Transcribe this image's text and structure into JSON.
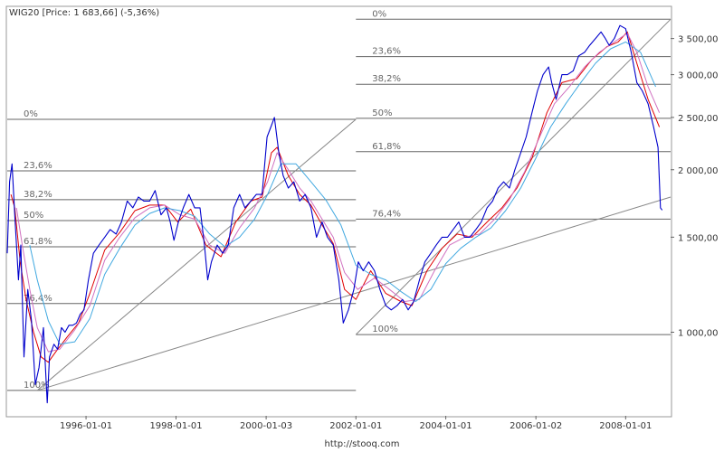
{
  "chart_data": {
    "type": "line",
    "title": "WIG20 [Price: 1 683,66] (-5,36%)",
    "source": "http://stooq.com",
    "y_scale": "log",
    "ylim": [
      700,
      4000
    ],
    "xlim": [
      "1994-04-01",
      "2008-12-31"
    ],
    "grid": false,
    "x_tick_labels": [
      "1996-01-01",
      "1998-01-01",
      "2000-01-03",
      "2002-01-01",
      "2004-01-01",
      "2006-01-02",
      "2008-01-01"
    ],
    "x_tick_dates": [
      "1996-01-01",
      "1998-01-01",
      "2000-01-03",
      "2002-01-01",
      "2004-01-01",
      "2006-01-02",
      "2008-01-01"
    ],
    "y_ticks": [
      {
        "label": "3 500,00",
        "value": 3500
      },
      {
        "label": "3 000,00",
        "value": 3000
      },
      {
        "label": "2 500,00",
        "value": 2500
      },
      {
        "label": "2 000,00",
        "value": 2000
      },
      {
        "label": "1 500,00",
        "value": 1500
      },
      {
        "label": "1 000,00",
        "value": 1000
      }
    ],
    "colors": {
      "price": "#0000cc",
      "ma_short": "#e00000",
      "ma_mid": "#d070c0",
      "ma_long": "#40a8e0",
      "fib_lines": "#666666",
      "trend_lines": "#888888",
      "border": "#999999"
    },
    "series": [
      {
        "color_key": "price",
        "x": [
          "1994-04-01",
          "1994-04-20",
          "1994-05-10",
          "1994-06-01",
          "1994-07-01",
          "1994-07-20",
          "1994-08-15",
          "1994-09-15",
          "1994-10-15",
          "1994-11-15",
          "1994-12-15",
          "1995-01-20",
          "1995-02-20",
          "1995-03-10",
          "1995-04-15",
          "1995-05-15",
          "1995-06-15",
          "1995-07-15",
          "1995-08-15",
          "1995-09-15",
          "1995-10-15",
          "1995-11-15",
          "1995-12-15",
          "1996-01-20",
          "1996-03-01",
          "1996-04-15",
          "1996-06-01",
          "1996-07-15",
          "1996-09-01",
          "1996-10-15",
          "1996-12-01",
          "1997-01-15",
          "1997-03-01",
          "1997-04-15",
          "1997-06-01",
          "1997-07-15",
          "1997-09-01",
          "1997-10-15",
          "1997-11-15",
          "1997-12-15",
          "1998-01-20",
          "1998-03-01",
          "1998-04-15",
          "1998-06-01",
          "1998-07-15",
          "1998-08-20",
          "1998-09-15",
          "1998-10-15",
          "1998-12-01",
          "1999-01-15",
          "1999-03-01",
          "1999-04-15",
          "1999-06-01",
          "1999-07-15",
          "1999-09-01",
          "1999-10-15",
          "1999-12-01",
          "2000-01-10",
          "2000-02-10",
          "2000-03-10",
          "2000-04-15",
          "2000-05-20",
          "2000-07-01",
          "2000-08-15",
          "2000-10-01",
          "2000-11-15",
          "2001-01-01",
          "2001-02-15",
          "2001-04-01",
          "2001-05-15",
          "2001-07-01",
          "2001-08-15",
          "2001-09-20",
          "2001-11-01",
          "2001-12-15",
          "2002-01-20",
          "2002-03-01",
          "2002-04-15",
          "2002-06-01",
          "2002-07-15",
          "2002-09-01",
          "2002-10-15",
          "2002-12-01",
          "2003-01-15",
          "2003-03-01",
          "2003-04-15",
          "2003-06-01",
          "2003-07-15",
          "2003-09-01",
          "2003-10-15",
          "2003-12-01",
          "2004-01-15",
          "2004-03-01",
          "2004-04-15",
          "2004-06-01",
          "2004-07-15",
          "2004-09-01",
          "2004-10-15",
          "2004-12-01",
          "2005-01-15",
          "2005-03-01",
          "2005-04-15",
          "2005-06-01",
          "2005-07-15",
          "2005-09-01",
          "2005-10-15",
          "2005-12-01",
          "2006-01-15",
          "2006-03-01",
          "2006-04-15",
          "2006-05-10",
          "2006-06-15",
          "2006-08-01",
          "2006-09-15",
          "2006-11-01",
          "2006-12-15",
          "2007-02-01",
          "2007-03-15",
          "2007-05-01",
          "2007-06-15",
          "2007-07-20",
          "2007-08-20",
          "2007-10-01",
          "2007-11-15",
          "2008-01-01",
          "2008-02-15",
          "2008-04-01",
          "2008-05-15",
          "2008-07-01",
          "2008-08-15",
          "2008-09-20",
          "2008-10-10",
          "2008-10-24"
        ],
        "y": [
          1400,
          1900,
          2050,
          1650,
          1250,
          1450,
          900,
          1200,
          1050,
          800,
          860,
          1020,
          740,
          900,
          950,
          930,
          1020,
          1000,
          1030,
          1030,
          1040,
          1080,
          1100,
          1250,
          1400,
          1450,
          1500,
          1550,
          1520,
          1600,
          1750,
          1700,
          1780,
          1750,
          1750,
          1830,
          1650,
          1700,
          1600,
          1480,
          1600,
          1700,
          1800,
          1700,
          1700,
          1450,
          1250,
          1350,
          1450,
          1400,
          1450,
          1700,
          1800,
          1700,
          1750,
          1800,
          1800,
          2300,
          2400,
          2500,
          2150,
          1950,
          1850,
          1900,
          1750,
          1800,
          1700,
          1500,
          1600,
          1500,
          1450,
          1250,
          1040,
          1100,
          1200,
          1350,
          1300,
          1350,
          1300,
          1200,
          1120,
          1100,
          1120,
          1150,
          1100,
          1140,
          1250,
          1350,
          1400,
          1450,
          1500,
          1500,
          1550,
          1600,
          1500,
          1500,
          1550,
          1600,
          1700,
          1750,
          1850,
          1900,
          1850,
          2000,
          2150,
          2300,
          2550,
          2800,
          3000,
          3100,
          2900,
          2700,
          3000,
          3000,
          3050,
          3250,
          3300,
          3400,
          3500,
          3600,
          3500,
          3400,
          3500,
          3700,
          3650,
          3300,
          2900,
          2800,
          2650,
          2400,
          2200,
          1700,
          1683.66
        ]
      },
      {
        "color_key": "ma_short",
        "x": [
          "1994-05-01",
          "1994-06-01",
          "1994-07-15",
          "1994-09-01",
          "1994-11-01",
          "1995-01-01",
          "1995-03-01",
          "1995-05-01",
          "1995-08-01",
          "1995-11-01",
          "1996-02-01",
          "1996-06-01",
          "1996-10-01",
          "1997-02-01",
          "1997-06-01",
          "1997-10-01",
          "1998-01-15",
          "1998-05-01",
          "1998-09-01",
          "1999-01-01",
          "1999-05-01",
          "1999-09-01",
          "1999-12-01",
          "2000-02-15",
          "2000-04-01",
          "2000-07-01",
          "2000-10-01",
          "2001-01-01",
          "2001-04-01",
          "2001-07-01",
          "2001-10-01",
          "2002-01-01",
          "2002-05-01",
          "2002-09-01",
          "2003-01-01",
          "2003-04-01",
          "2003-08-01",
          "2003-12-01",
          "2004-04-01",
          "2004-08-01",
          "2004-12-01",
          "2005-04-01",
          "2005-08-01",
          "2005-12-01",
          "2006-04-01",
          "2006-08-01",
          "2006-12-01",
          "2007-04-01",
          "2007-08-01",
          "2007-11-01",
          "2008-01-15",
          "2008-04-01",
          "2008-07-01",
          "2008-10-01"
        ],
        "y": [
          1800,
          1700,
          1350,
          1150,
          1000,
          900,
          880,
          920,
          980,
          1040,
          1180,
          1420,
          1530,
          1680,
          1720,
          1720,
          1600,
          1690,
          1450,
          1380,
          1600,
          1750,
          1780,
          2150,
          2200,
          1950,
          1800,
          1720,
          1580,
          1460,
          1200,
          1150,
          1300,
          1180,
          1140,
          1120,
          1300,
          1430,
          1520,
          1500,
          1600,
          1700,
          1850,
          2100,
          2550,
          2900,
          2950,
          3200,
          3380,
          3450,
          3600,
          3150,
          2700,
          2400
        ]
      },
      {
        "color_key": "ma_mid",
        "x": [
          "1994-06-15",
          "1994-08-01",
          "1994-10-01",
          "1994-12-01",
          "1995-03-01",
          "1995-06-01",
          "1995-10-01",
          "1996-02-01",
          "1996-06-01",
          "1996-10-01",
          "1997-02-01",
          "1997-06-01",
          "1997-10-01",
          "1998-02-01",
          "1998-06-01",
          "1998-10-01",
          "1999-02-01",
          "1999-06-01",
          "1999-10-01",
          "2000-01-15",
          "2000-04-01",
          "2000-07-01",
          "2000-10-01",
          "2001-01-01",
          "2001-04-01",
          "2001-07-01",
          "2001-10-01",
          "2002-01-15",
          "2002-06-01",
          "2002-10-01",
          "2003-02-01",
          "2003-06-01",
          "2003-10-01",
          "2004-02-01",
          "2004-06-01",
          "2004-10-01",
          "2005-02-01",
          "2005-06-01",
          "2005-10-01",
          "2006-02-01",
          "2006-06-01",
          "2006-10-01",
          "2007-02-01",
          "2007-06-01",
          "2007-10-01",
          "2008-01-15",
          "2008-04-01",
          "2008-07-01",
          "2008-10-01"
        ],
        "y": [
          1700,
          1450,
          1200,
          1020,
          920,
          930,
          1010,
          1120,
          1360,
          1500,
          1630,
          1700,
          1720,
          1650,
          1620,
          1450,
          1400,
          1560,
          1700,
          1900,
          2150,
          2000,
          1850,
          1750,
          1620,
          1500,
          1290,
          1200,
          1260,
          1200,
          1140,
          1150,
          1300,
          1450,
          1500,
          1520,
          1620,
          1760,
          1980,
          2300,
          2650,
          2850,
          3100,
          3300,
          3450,
          3580,
          3300,
          2850,
          2550
        ]
      },
      {
        "color_key": "ma_long",
        "x": [
          "1994-10-01",
          "1994-12-01",
          "1995-03-01",
          "1995-06-01",
          "1995-10-01",
          "1996-02-01",
          "1996-06-01",
          "1996-10-01",
          "1997-02-01",
          "1997-06-01",
          "1997-10-01",
          "1998-02-01",
          "1998-06-01",
          "1998-10-01",
          "1999-02-01",
          "1999-06-01",
          "1999-10-01",
          "2000-01-15",
          "2000-05-01",
          "2000-09-01",
          "2001-01-01",
          "2001-05-01",
          "2001-09-01",
          "2002-01-01",
          "2002-05-01",
          "2002-09-01",
          "2003-01-01",
          "2003-05-01",
          "2003-09-01",
          "2004-01-01",
          "2004-05-01",
          "2004-09-01",
          "2005-01-01",
          "2005-05-01",
          "2005-09-01",
          "2006-01-01",
          "2006-05-01",
          "2006-09-01",
          "2007-01-01",
          "2007-05-01",
          "2007-09-01",
          "2008-01-01",
          "2008-05-01",
          "2008-09-01"
        ],
        "y": [
          1450,
          1250,
          1050,
          950,
          960,
          1060,
          1280,
          1430,
          1580,
          1660,
          1700,
          1680,
          1640,
          1520,
          1440,
          1500,
          1620,
          1800,
          2050,
          2050,
          1900,
          1760,
          1580,
          1330,
          1280,
          1250,
          1190,
          1140,
          1200,
          1340,
          1430,
          1500,
          1560,
          1680,
          1850,
          2100,
          2400,
          2650,
          2900,
          3150,
          3350,
          3450,
          3300,
          2850
        ]
      }
    ],
    "fib_levels": [
      {
        "labels": [
          "0%",
          "23,6%",
          "38,2%",
          "50%",
          "61,8%",
          "76,4%",
          "100%"
        ],
        "values": [
          2480,
          1990,
          1760,
          1610,
          1440,
          1130,
          780
        ],
        "x_start": "1994-04-01",
        "x_end": "2002-01-01"
      },
      {
        "labels": [
          "0%",
          "23,6%",
          "38,2%",
          "50%",
          "61,8%",
          "76,4%",
          "100%"
        ],
        "values": [
          3800,
          3240,
          2880,
          2490,
          2160,
          1620,
          990
        ],
        "x_start": "2002-01-01",
        "x_end": "2008-12-31"
      }
    ],
    "trend_lines": [
      {
        "x": [
          "1994-12-01",
          "2002-01-01"
        ],
        "y": [
          780,
          2480
        ]
      },
      {
        "x": [
          "1994-12-01",
          "2008-12-31"
        ],
        "y": [
          780,
          1780
        ]
      },
      {
        "x": [
          "2002-01-01",
          "2008-12-31"
        ],
        "y": [
          990,
          3800
        ]
      }
    ]
  }
}
